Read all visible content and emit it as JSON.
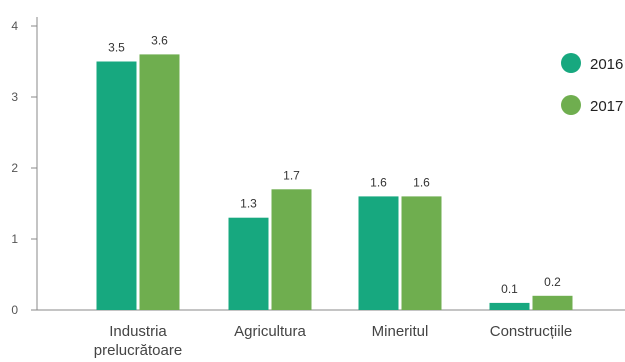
{
  "chart_data": {
    "type": "bar",
    "categories": [
      "Industria prelucrătoare",
      "Agricultura",
      "Mineritul",
      "Construcțiile"
    ],
    "category_lines": [
      [
        "Industria",
        "prelucrătoare"
      ],
      [
        "Agricultura"
      ],
      [
        "Mineritul"
      ],
      [
        "Construcțiile"
      ]
    ],
    "series": [
      {
        "name": "2016",
        "values": [
          3.5,
          1.3,
          1.6,
          0.1
        ],
        "labels": [
          "3.5",
          "1.3",
          "1.6",
          "0.1"
        ],
        "color": "#17A87F"
      },
      {
        "name": "2017",
        "values": [
          3.6,
          1.7,
          1.6,
          0.2
        ],
        "labels": [
          "3.6",
          "1.7",
          "1.6",
          "0.2"
        ],
        "color": "#6FAE4F"
      }
    ],
    "yticks": [
      "0",
      "1",
      "2",
      "3",
      "4"
    ],
    "ylim": [
      0,
      4
    ],
    "grid": false,
    "legend": "right",
    "axis_color": "#888888"
  }
}
